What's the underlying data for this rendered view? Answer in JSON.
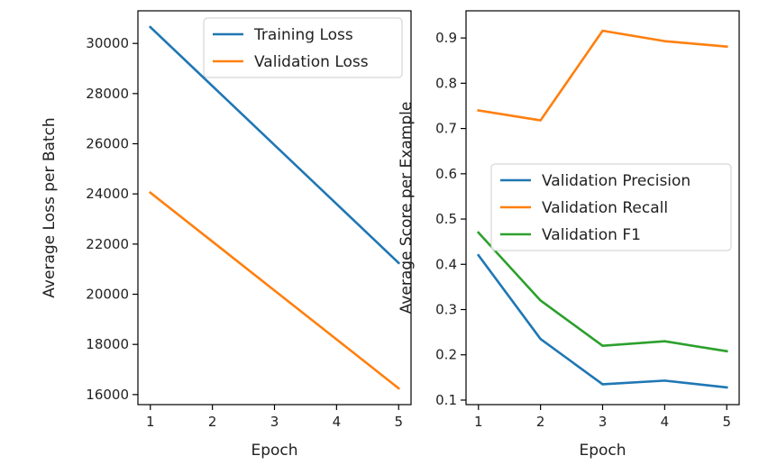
{
  "chart_data": [
    {
      "type": "line",
      "title": "",
      "xlabel": "Epoch",
      "ylabel": "Average Loss per Batch",
      "x": [
        1,
        2,
        3,
        4,
        5
      ],
      "x_ticks": [
        "1",
        "2",
        "3",
        "4",
        "5"
      ],
      "xlim": [
        0.8,
        5.2
      ],
      "ylim": [
        15600,
        31300
      ],
      "y_ticks": [
        16000,
        18000,
        20000,
        22000,
        24000,
        26000,
        28000,
        30000
      ],
      "legend_position": "top-right",
      "grid": false,
      "series": [
        {
          "name": "Training Loss",
          "color": "#1f77b4",
          "values": [
            30650,
            28300,
            25950,
            23600,
            21250
          ]
        },
        {
          "name": "Validation Loss",
          "color": "#ff7f0e",
          "values": [
            24050,
            22100,
            20150,
            18200,
            16250
          ]
        }
      ]
    },
    {
      "type": "line",
      "title": "",
      "xlabel": "Epoch",
      "ylabel": "Average Score per Example",
      "x": [
        1,
        2,
        3,
        4,
        5
      ],
      "x_ticks": [
        "1",
        "2",
        "3",
        "4",
        "5"
      ],
      "xlim": [
        0.8,
        5.2
      ],
      "ylim": [
        0.09,
        0.96
      ],
      "y_ticks": [
        0.1,
        0.2,
        0.3,
        0.4,
        0.5,
        0.6,
        0.7,
        0.8,
        0.9
      ],
      "legend_position": "center-right",
      "grid": false,
      "series": [
        {
          "name": "Validation Precision",
          "color": "#1f77b4",
          "values": [
            0.42,
            0.235,
            0.135,
            0.143,
            0.128
          ]
        },
        {
          "name": "Validation Recall",
          "color": "#ff7f0e",
          "values": [
            0.74,
            0.718,
            0.916,
            0.893,
            0.881
          ]
        },
        {
          "name": "Validation F1",
          "color": "#2ca02c",
          "values": [
            0.47,
            0.32,
            0.22,
            0.23,
            0.208
          ]
        }
      ]
    }
  ]
}
